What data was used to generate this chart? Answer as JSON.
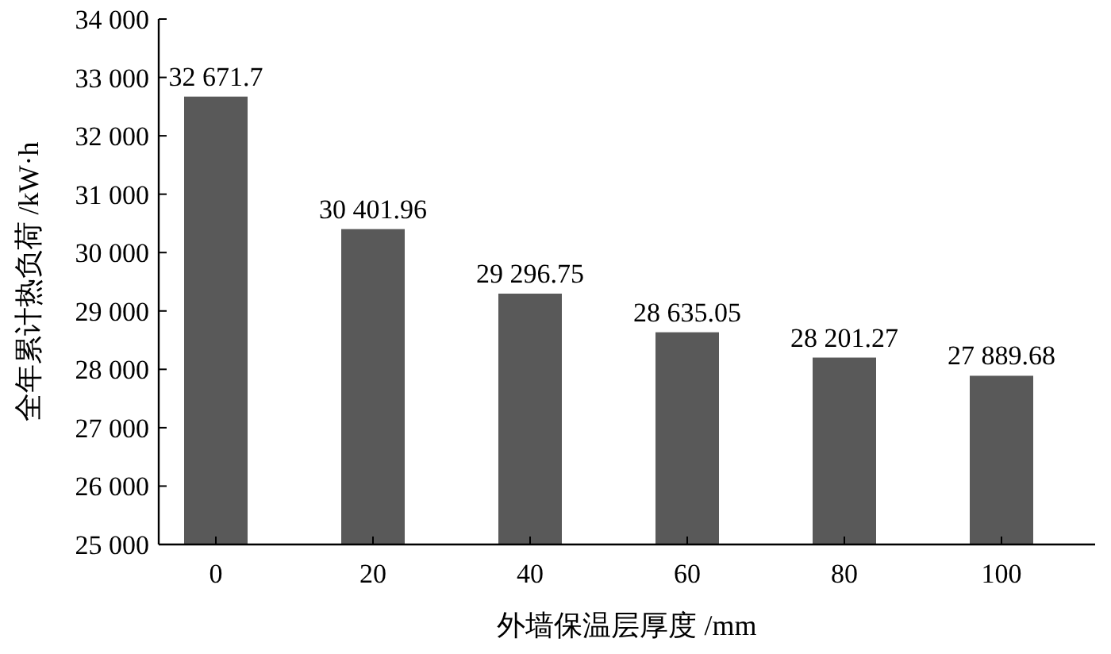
{
  "chart_data": {
    "type": "bar",
    "xlabel": "外墙保温层厚度 /mm",
    "ylabel": "全年累计热负荷 /kW·h",
    "categories": [
      "0",
      "20",
      "40",
      "60",
      "80",
      "100"
    ],
    "values": [
      32671.7,
      30401.96,
      29296.75,
      28635.05,
      28201.27,
      27889.68
    ],
    "value_labels": [
      "32 671.7",
      "30 401.96",
      "29 296.75",
      "28 635.05",
      "28 201.27",
      "27 889.68"
    ],
    "color": "#595959",
    "ylim": [
      25000,
      34000
    ],
    "yticks": [
      {
        "value": 25000,
        "label": "25 000"
      },
      {
        "value": 26000,
        "label": "26 000"
      },
      {
        "value": 27000,
        "label": "27 000"
      },
      {
        "value": 28000,
        "label": "28 000"
      },
      {
        "value": 29000,
        "label": "29 000"
      },
      {
        "value": 30000,
        "label": "30 000"
      },
      {
        "value": 31000,
        "label": "31 000"
      },
      {
        "value": 32000,
        "label": "32 000"
      },
      {
        "value": 33000,
        "label": "33 000"
      },
      {
        "value": 34000,
        "label": "34 000"
      }
    ],
    "grid": false
  }
}
